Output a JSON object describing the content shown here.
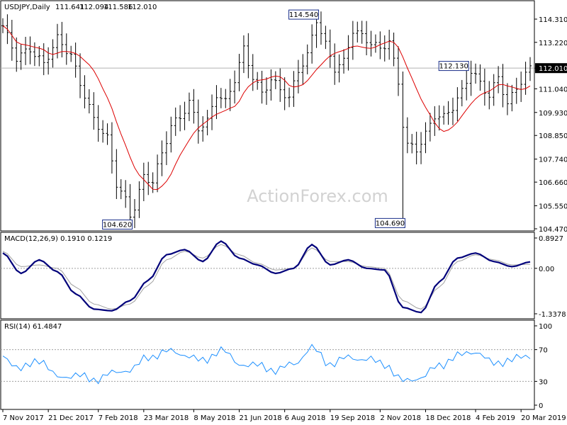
{
  "chart_data": [
    {
      "type": "candlestick",
      "title": "USDJPY,Daily",
      "ohlc_header": {
        "open": "111.641",
        "high": "112.094",
        "low": "111.586",
        "close": "112.010"
      },
      "current_price_label": "112.010",
      "current_price": 112.01,
      "ylim": [
        104.47,
        115.0
      ],
      "y_ticks": [
        {
          "label": "114.310",
          "value": 114.31
        },
        {
          "label": "113.220",
          "value": 113.22
        },
        {
          "label": "112.010",
          "value": 112.01
        },
        {
          "label": "111.040",
          "value": 111.04
        },
        {
          "label": "109.930",
          "value": 109.93
        },
        {
          "label": "108.850",
          "value": 108.85
        },
        {
          "label": "107.740",
          "value": 107.74
        },
        {
          "label": "106.660",
          "value": 106.66
        },
        {
          "label": "105.550",
          "value": 105.55
        },
        {
          "label": "104.470",
          "value": 104.47
        }
      ],
      "annotations": [
        {
          "label": "114.540",
          "date_index": 69,
          "value": 114.54
        },
        {
          "label": "104.620",
          "date_index": 28,
          "value": 104.62
        },
        {
          "label": "104.690",
          "date_index": 88,
          "value": 104.69
        },
        {
          "label": "112.130",
          "date_index": 102,
          "value": 112.13
        }
      ],
      "series": [
        {
          "name": "price",
          "color": "#000000"
        },
        {
          "name": "moving-average",
          "color": "#dd0000"
        }
      ],
      "watermark": "ActionForex.com",
      "price_anchors": [
        [
          0,
          114.0
        ],
        [
          3,
          112.5
        ],
        [
          6,
          112.9
        ],
        [
          9,
          112.2
        ],
        [
          12,
          113.4
        ],
        [
          15,
          112.6
        ],
        [
          17,
          111.3
        ],
        [
          20,
          109.6
        ],
        [
          23,
          108.7
        ],
        [
          25,
          106.6
        ],
        [
          27,
          105.8
        ],
        [
          28,
          105.1
        ],
        [
          29,
          105.5
        ],
        [
          31,
          106.9
        ],
        [
          33,
          106.7
        ],
        [
          35,
          108.0
        ],
        [
          37,
          109.3
        ],
        [
          39,
          109.7
        ],
        [
          41,
          110.4
        ],
        [
          43,
          109.2
        ],
        [
          45,
          109.5
        ],
        [
          47,
          110.8
        ],
        [
          49,
          110.4
        ],
        [
          51,
          111.5
        ],
        [
          53,
          112.9
        ],
        [
          55,
          111.6
        ],
        [
          57,
          110.8
        ],
        [
          59,
          111.5
        ],
        [
          61,
          111.0
        ],
        [
          63,
          110.6
        ],
        [
          65,
          111.9
        ],
        [
          67,
          112.6
        ],
        [
          69,
          114.3
        ],
        [
          71,
          113.1
        ],
        [
          73,
          112.0
        ],
        [
          75,
          112.3
        ],
        [
          77,
          113.8
        ],
        [
          79,
          113.5
        ],
        [
          81,
          113.2
        ],
        [
          83,
          112.9
        ],
        [
          85,
          113.3
        ],
        [
          87,
          111.3
        ],
        [
          88,
          109.4
        ],
        [
          89,
          108.4
        ],
        [
          91,
          108.2
        ],
        [
          93,
          108.9
        ],
        [
          95,
          109.8
        ],
        [
          97,
          109.7
        ],
        [
          99,
          110.2
        ],
        [
          101,
          110.9
        ],
        [
          103,
          111.9
        ],
        [
          105,
          111.3
        ],
        [
          107,
          110.7
        ],
        [
          109,
          111.6
        ],
        [
          111,
          110.3
        ],
        [
          113,
          111.1
        ],
        [
          115,
          111.7
        ],
        [
          116,
          112.0
        ]
      ]
    },
    {
      "type": "line",
      "title": "MACD(12,26,9) 0.1910 0.1219",
      "ylim": [
        -1.3378,
        0.8927
      ],
      "y_ticks": [
        {
          "label": "0.8927",
          "value": 0.8927
        },
        {
          "label": "0.00",
          "value": 0.0
        },
        {
          "label": "-1.3378",
          "value": -1.3378
        }
      ],
      "series": [
        {
          "name": "MACD",
          "color": "#00007a"
        },
        {
          "name": "signal",
          "color": "#a0a0a0"
        }
      ],
      "x_index": [
        0,
        4,
        8,
        12,
        16,
        20,
        24,
        28,
        32,
        36,
        40,
        44,
        48,
        52,
        56,
        60,
        64,
        68,
        72,
        76,
        80,
        84,
        88,
        92,
        96,
        100,
        104,
        108,
        112,
        116
      ],
      "macd_values": [
        0.45,
        -0.15,
        0.25,
        -0.1,
        -0.75,
        -1.2,
        -1.25,
        -0.95,
        -0.35,
        0.4,
        0.55,
        0.2,
        0.8,
        0.3,
        0.1,
        -0.15,
        0.0,
        0.7,
        0.1,
        0.25,
        0.0,
        -0.05,
        -1.15,
        -1.3,
        -0.4,
        0.3,
        0.45,
        0.2,
        0.05,
        0.19
      ],
      "signal_values": [
        0.5,
        0.05,
        0.1,
        0.0,
        -0.55,
        -1.05,
        -1.2,
        -1.05,
        -0.5,
        0.25,
        0.5,
        0.3,
        0.7,
        0.4,
        0.15,
        -0.05,
        0.0,
        0.6,
        0.2,
        0.2,
        0.05,
        0.0,
        -0.95,
        -1.2,
        -0.55,
        0.2,
        0.4,
        0.25,
        0.1,
        0.12
      ]
    },
    {
      "type": "line",
      "title": "RSI(14) 61.4847",
      "ylim": [
        0,
        100
      ],
      "y_ticks": [
        {
          "label": "100",
          "value": 100
        },
        {
          "label": "70",
          "value": 70
        },
        {
          "label": "30",
          "value": 30
        },
        {
          "label": "0",
          "value": 0
        }
      ],
      "series": [
        {
          "name": "RSI",
          "color": "#1e90ff"
        }
      ],
      "x_index": [
        0,
        4,
        8,
        12,
        16,
        20,
        24,
        28,
        32,
        36,
        40,
        44,
        48,
        52,
        56,
        60,
        64,
        68,
        72,
        76,
        80,
        84,
        88,
        92,
        96,
        100,
        104,
        108,
        112,
        116
      ],
      "values": [
        62,
        45,
        58,
        35,
        38,
        32,
        40,
        45,
        60,
        68,
        64,
        55,
        70,
        52,
        50,
        44,
        52,
        72,
        52,
        60,
        58,
        52,
        30,
        35,
        50,
        62,
        68,
        52,
        58,
        61.5
      ]
    }
  ],
  "x_axis": {
    "labels": [
      "7 Nov 2017",
      "21 Dec 2017",
      "7 Feb 2018",
      "23 Mar 2018",
      "8 May 2018",
      "21 Jun 2018",
      "6 Aug 2018",
      "19 Sep 2018",
      "2 Nov 2018",
      "18 Dec 2018",
      "4 Feb 2019",
      "20 Mar 2019"
    ],
    "label_indices": [
      0,
      10,
      21,
      31,
      42,
      52,
      62,
      72,
      83,
      93,
      104,
      114
    ]
  }
}
